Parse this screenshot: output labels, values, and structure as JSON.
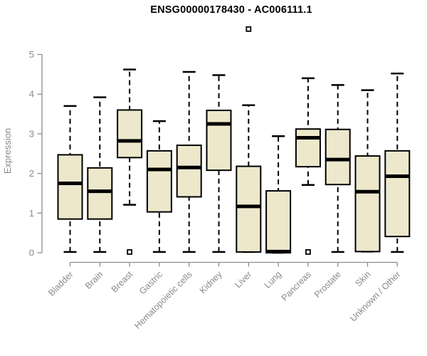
{
  "chart_data": {
    "type": "boxplot",
    "title": "ENSG00000178430 - AC006111.1",
    "xlabel": "",
    "ylabel": "Expression",
    "ylim": [
      0,
      5
    ],
    "yticks": [
      0,
      1,
      2,
      3,
      4,
      5
    ],
    "grid": false,
    "legend": false,
    "categories": [
      "Bladder",
      "Brain",
      "Breast",
      "Gastric",
      "Hematopoietic cells",
      "Kidney",
      "Liver",
      "Lung",
      "Pancreas",
      "Prostate",
      "Skin",
      "Unknown / Other"
    ],
    "series": [
      {
        "category": "Bladder",
        "whisker_low": 0.02,
        "q1": 0.85,
        "median": 1.75,
        "q3": 2.47,
        "whisker_high": 3.7,
        "outliers": []
      },
      {
        "category": "Brain",
        "whisker_low": 0.02,
        "q1": 0.85,
        "median": 1.55,
        "q3": 2.14,
        "whisker_high": 3.92,
        "outliers": []
      },
      {
        "category": "Breast",
        "whisker_low": 1.21,
        "q1": 2.4,
        "median": 2.82,
        "q3": 3.6,
        "whisker_high": 4.62,
        "outliers": [
          0.02
        ]
      },
      {
        "category": "Gastric",
        "whisker_low": 0.02,
        "q1": 1.03,
        "median": 2.1,
        "q3": 2.57,
        "whisker_high": 3.32,
        "outliers": []
      },
      {
        "category": "Hematopoietic cells",
        "whisker_low": 0.02,
        "q1": 1.41,
        "median": 2.15,
        "q3": 2.71,
        "whisker_high": 4.56,
        "outliers": []
      },
      {
        "category": "Kidney",
        "whisker_low": 0.02,
        "q1": 2.08,
        "median": 3.25,
        "q3": 3.59,
        "whisker_high": 4.48,
        "outliers": []
      },
      {
        "category": "Liver",
        "whisker_low": 0.02,
        "q1": 0.02,
        "median": 1.17,
        "q3": 2.18,
        "whisker_high": 3.72,
        "outliers": [
          5.64
        ]
      },
      {
        "category": "Lung",
        "whisker_low": 0.0,
        "q1": 0.0,
        "median": 0.03,
        "q3": 1.56,
        "whisker_high": 2.94,
        "outliers": []
      },
      {
        "category": "Pancreas",
        "whisker_low": 1.71,
        "q1": 2.17,
        "median": 2.9,
        "q3": 3.12,
        "whisker_high": 4.4,
        "outliers": [
          0.02
        ]
      },
      {
        "category": "Prostate",
        "whisker_low": 0.02,
        "q1": 1.72,
        "median": 2.35,
        "q3": 3.11,
        "whisker_high": 4.23,
        "outliers": []
      },
      {
        "category": "Skin",
        "whisker_low": 0.03,
        "q1": 0.03,
        "median": 1.54,
        "q3": 2.44,
        "whisker_high": 4.1,
        "outliers": []
      },
      {
        "category": "Unknown / Other",
        "whisker_low": 0.02,
        "q1": 0.41,
        "median": 1.93,
        "q3": 2.57,
        "whisker_high": 4.52,
        "outliers": []
      }
    ],
    "colors": {
      "box_fill": "#EDE8CC",
      "box_border": "#000000",
      "median": "#000000",
      "whisker": "#000000",
      "outlier_fill": "#FFFFFF",
      "outlier_border": "#000000",
      "axis": "#8C8C8C",
      "text": "#8A8A8A",
      "title": "#000000",
      "background": "#FFFFFF"
    }
  }
}
